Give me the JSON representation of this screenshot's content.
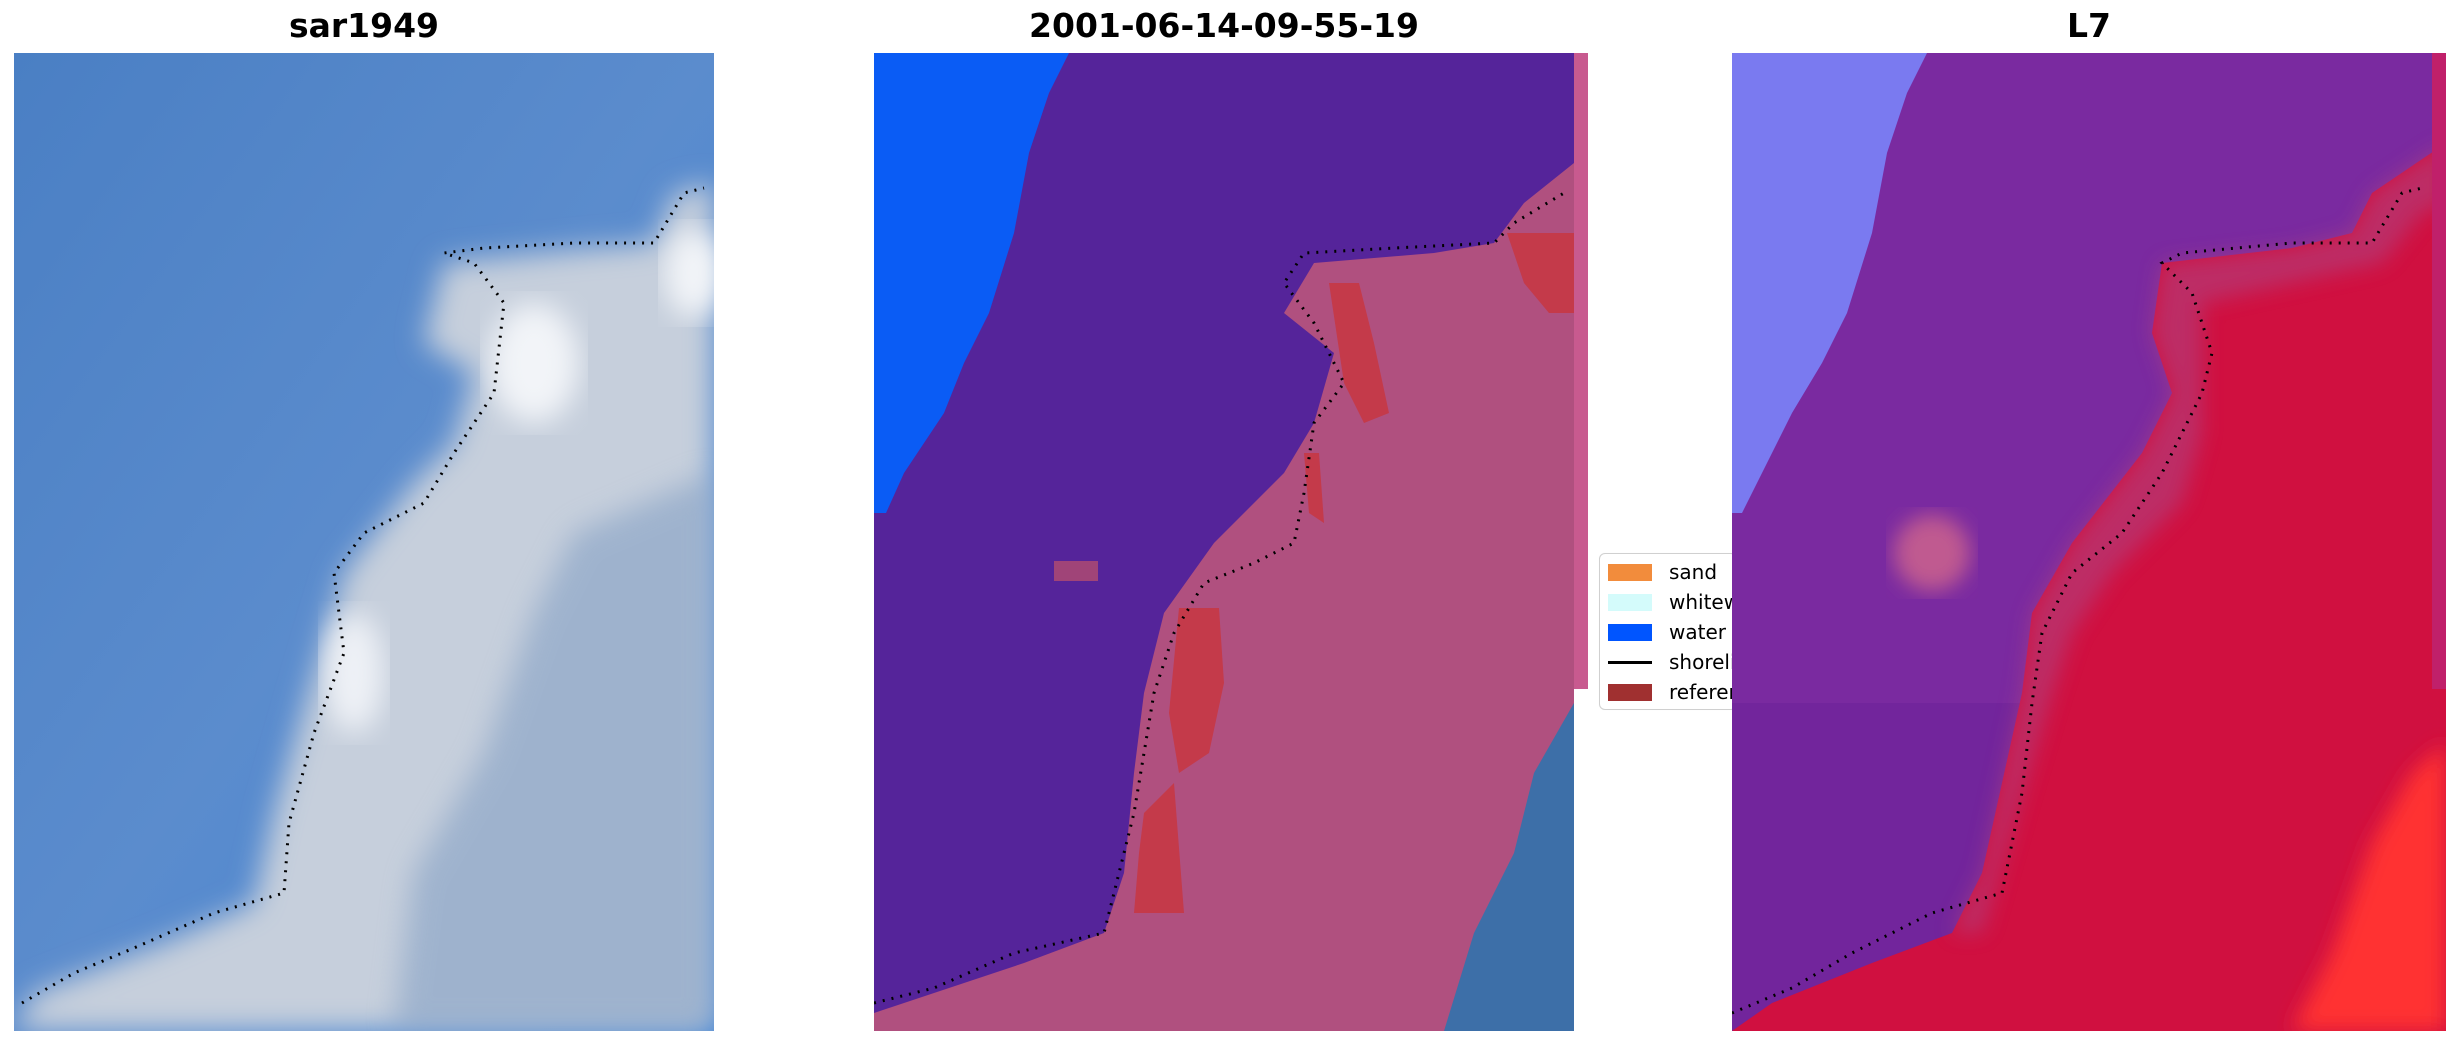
{
  "panels": [
    {
      "id": "p1",
      "title": "sar1949"
    },
    {
      "id": "p2",
      "title": "2001-06-14-09-55-19"
    },
    {
      "id": "p3",
      "title": "L7"
    }
  ],
  "legend": {
    "items": [
      {
        "label": "sand",
        "color": "#f28c3c",
        "kind": "patch"
      },
      {
        "label": "whitewater",
        "color": "#d4fbfb",
        "kind": "patch"
      },
      {
        "label": "water",
        "color": "#0055ff",
        "kind": "patch"
      },
      {
        "label": "shoreline",
        "color": "#000000",
        "kind": "line"
      },
      {
        "label": "reference shoreline",
        "color": "#a03030",
        "kind": "patch"
      }
    ]
  },
  "colors": {
    "ocean_rgb": "#3f7cc4",
    "foam": "#d8dce4",
    "water_class": "#0a5cf5",
    "classified_sea": "#55249a",
    "land_overlay": "#b0507f",
    "reference_red": "#c43a4a",
    "index_water": "#7a7af0",
    "index_sea": "#7a2aa0",
    "index_land": "#d01040"
  }
}
